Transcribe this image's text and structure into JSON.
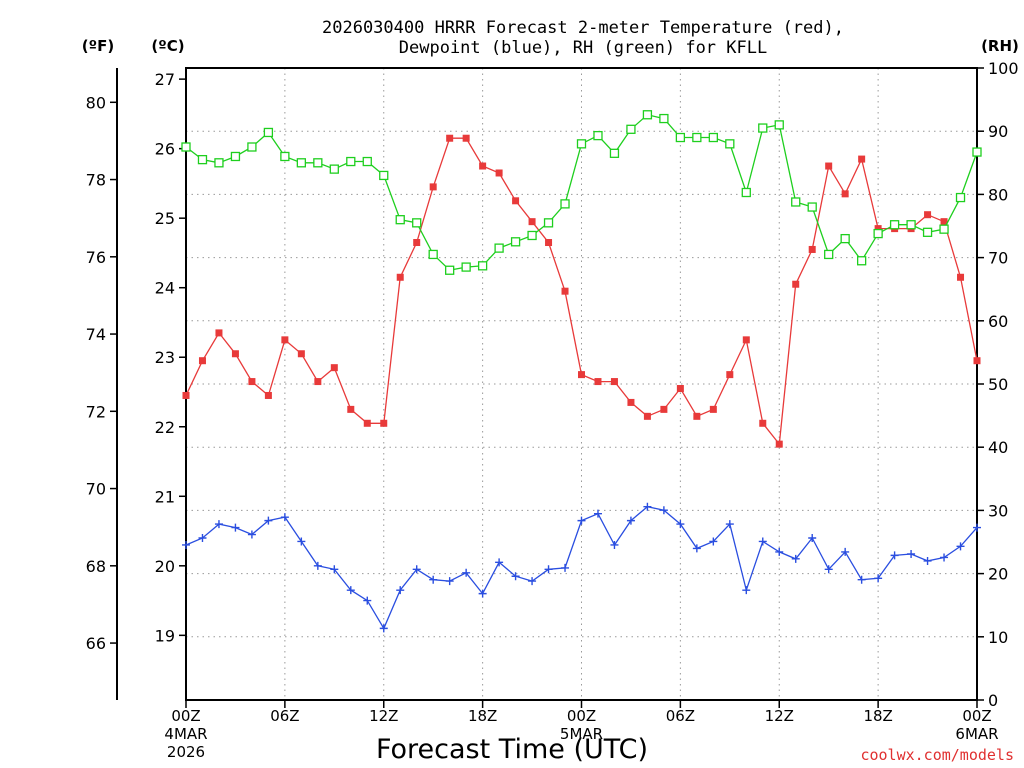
{
  "chart_data": {
    "type": "line",
    "title_line1": "2026030400 HRRR Forecast 2-meter Temperature (red),",
    "title_line2": "Dewpoint (blue), RH (green) for KFLL",
    "xlabel": "Forecast Time (UTC)",
    "credit": "coolwx.com/models",
    "units": {
      "f": "(ºF)",
      "c": "(ºC)",
      "rh": "(RH)"
    },
    "x_range": [
      0,
      48
    ],
    "x_ticks": [
      {
        "x": 0,
        "label": "00Z",
        "line2": "4MAR",
        "line3": "2026"
      },
      {
        "x": 6,
        "label": "06Z"
      },
      {
        "x": 12,
        "label": "12Z"
      },
      {
        "x": 18,
        "label": "18Z"
      },
      {
        "x": 24,
        "label": "00Z",
        "line2": "5MAR"
      },
      {
        "x": 30,
        "label": "06Z"
      },
      {
        "x": 36,
        "label": "12Z"
      },
      {
        "x": 42,
        "label": "18Z"
      },
      {
        "x": 48,
        "label": "00Z",
        "line2": "6MAR"
      }
    ],
    "c_range": [
      18.07,
      27.16
    ],
    "c_ticks": [
      19,
      20,
      21,
      22,
      23,
      24,
      25,
      26,
      27
    ],
    "f_ticks": [
      66,
      68,
      70,
      72,
      74,
      76,
      78,
      80
    ],
    "rh_range": [
      0,
      100
    ],
    "rh_ticks": [
      0,
      10,
      20,
      30,
      40,
      50,
      60,
      70,
      80,
      90,
      100
    ],
    "grid": true,
    "series": [
      {
        "key": "temperature",
        "color": "#e83a3a",
        "axis": "c",
        "marker": "filled-square",
        "values": [
          22.45,
          22.95,
          23.35,
          23.05,
          22.65,
          22.45,
          23.25,
          23.05,
          22.65,
          22.85,
          22.25,
          22.05,
          22.05,
          24.15,
          24.65,
          25.45,
          26.15,
          26.15,
          25.75,
          25.65,
          25.25,
          24.95,
          24.65,
          23.95,
          22.75,
          22.65,
          22.65,
          22.35,
          22.15,
          22.25,
          22.55,
          22.15,
          22.25,
          22.75,
          23.25,
          22.05,
          21.75,
          24.05,
          24.55,
          25.75,
          25.35,
          25.85,
          24.85,
          24.85,
          24.85,
          25.05,
          24.95,
          24.15,
          22.95
        ]
      },
      {
        "key": "dewpoint",
        "color": "#2a4ee0",
        "axis": "c",
        "marker": "plus",
        "values": [
          20.3,
          20.4,
          20.6,
          20.55,
          20.45,
          20.65,
          20.7,
          20.35,
          20.0,
          19.95,
          19.65,
          19.5,
          19.1,
          19.65,
          19.95,
          19.8,
          19.78,
          19.9,
          19.6,
          20.05,
          19.85,
          19.78,
          19.95,
          19.97,
          20.65,
          20.75,
          20.3,
          20.65,
          20.85,
          20.8,
          20.6,
          20.25,
          20.35,
          20.6,
          19.65,
          20.35,
          20.2,
          20.1,
          20.4,
          19.95,
          20.2,
          19.8,
          19.82,
          20.15,
          20.17,
          20.07,
          20.12,
          20.28,
          20.55
        ]
      },
      {
        "key": "rh",
        "color": "#1ecf1e",
        "axis": "rh",
        "marker": "open-square",
        "values": [
          87.5,
          85.5,
          85.0,
          86.0,
          87.5,
          89.8,
          86.0,
          85.0,
          85.0,
          84.0,
          85.2,
          85.2,
          83.0,
          76.0,
          75.5,
          70.5,
          68.0,
          68.5,
          68.7,
          71.5,
          72.5,
          73.5,
          75.5,
          78.5,
          88.0,
          89.3,
          86.5,
          90.3,
          92.6,
          92.0,
          89.0,
          89.0,
          89.0,
          88.0,
          80.3,
          90.5,
          91.0,
          78.8,
          78.0,
          70.5,
          73.0,
          69.5,
          73.8,
          75.2,
          75.2,
          74.0,
          74.5,
          79.5,
          86.7
        ]
      }
    ]
  }
}
